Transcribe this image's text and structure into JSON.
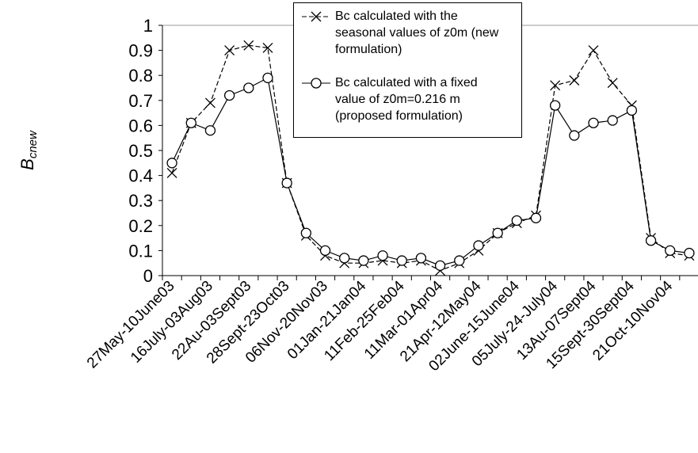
{
  "chart_data": {
    "type": "line",
    "y_label": "B",
    "y_label_subscript": "cnew",
    "categories": [
      "27May-10June03",
      null,
      "16July-03Aug03",
      null,
      "22Au-03Sept03",
      null,
      "28Sept-23Oct03",
      null,
      "06Nov-20Nov03",
      null,
      "01Jan-21Jan04",
      null,
      "11Feb-25Feb04",
      null,
      "11Mar-01Apr04",
      null,
      "21Apr-12May04",
      null,
      "02June-15June04",
      null,
      "05July-24-July04",
      null,
      "13Au-07Sept04",
      null,
      "15Sept-30Sept04",
      null,
      "21Oct-10Nov04",
      null
    ],
    "series": [
      {
        "name": "Bc calculated with the seasonal values of z0m (new formulation)",
        "color": "#000000",
        "marker": "x",
        "dashed": true,
        "values": [
          0.41,
          0.61,
          0.69,
          0.9,
          0.92,
          0.91,
          0.37,
          0.16,
          0.08,
          0.05,
          0.05,
          0.06,
          0.05,
          0.06,
          0.02,
          0.05,
          0.1,
          0.17,
          0.21,
          0.24,
          0.76,
          0.78,
          0.9,
          0.77,
          0.68,
          0.15,
          0.09,
          0.08
        ]
      },
      {
        "name": "Bc calculated with a fixed value of z0m=0.216 m (proposed formulation)",
        "color": "#000000",
        "marker": "o",
        "dashed": false,
        "values": [
          0.45,
          0.61,
          0.58,
          0.72,
          0.75,
          0.79,
          0.37,
          0.17,
          0.1,
          0.07,
          0.06,
          0.08,
          0.06,
          0.07,
          0.04,
          0.06,
          0.12,
          0.17,
          0.22,
          0.23,
          0.68,
          0.56,
          0.61,
          0.62,
          0.66,
          0.14,
          0.1,
          0.09
        ]
      }
    ],
    "ylim": [
      0,
      1
    ],
    "yticks": [
      0,
      0.1,
      0.2,
      0.3,
      0.4,
      0.5,
      0.6,
      0.7,
      0.8,
      0.9,
      1
    ]
  }
}
